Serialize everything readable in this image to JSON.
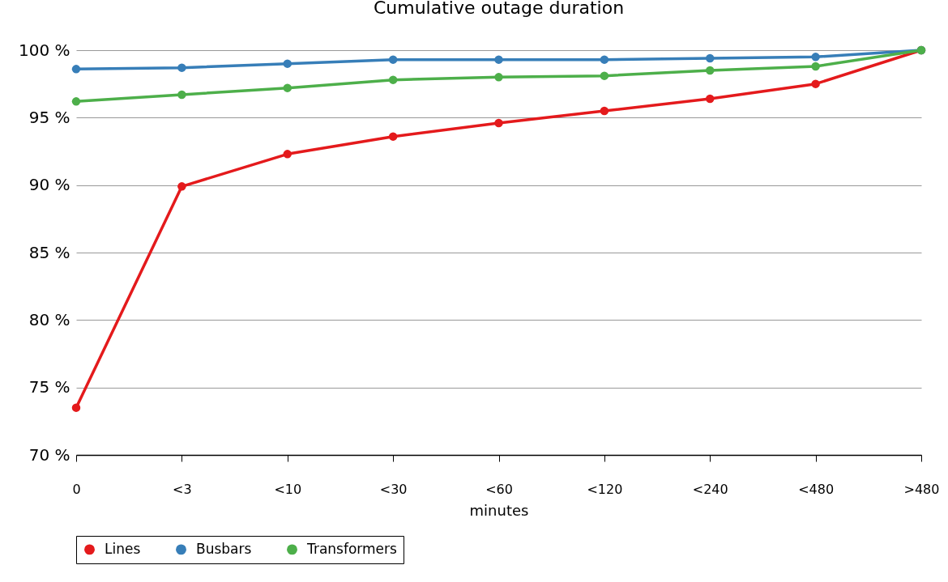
{
  "chart_data": {
    "type": "line",
    "title": "Cumulative outage duration",
    "xlabel": "minutes",
    "categories": [
      "0",
      "<3",
      "<10",
      "<30",
      "<60",
      "<120",
      "<240",
      "<480",
      ">480"
    ],
    "series": [
      {
        "name": "Lines",
        "color": "#e41a1c",
        "values": [
          73.5,
          89.9,
          92.3,
          93.6,
          94.6,
          95.5,
          96.4,
          97.5,
          100
        ]
      },
      {
        "name": "Busbars",
        "color": "#377eb8",
        "values": [
          98.6,
          98.7,
          99.0,
          99.3,
          99.3,
          99.3,
          99.4,
          99.5,
          100
        ]
      },
      {
        "name": "Transformers",
        "color": "#4daf4a",
        "values": [
          96.2,
          96.7,
          97.2,
          97.8,
          98.0,
          98.1,
          98.5,
          98.8,
          100
        ]
      }
    ],
    "ylim": [
      70,
      100
    ],
    "yticks": [
      {
        "value": 70,
        "label": "70 %"
      },
      {
        "value": 75,
        "label": "75 %"
      },
      {
        "value": 80,
        "label": "80 %"
      },
      {
        "value": 85,
        "label": "85 %"
      },
      {
        "value": 90,
        "label": "90 %"
      },
      {
        "value": 95,
        "label": "95 %"
      },
      {
        "value": 100,
        "label": "100 %"
      }
    ],
    "grid": "y",
    "legend": "bottom",
    "marker": "circle",
    "line_style": "solid"
  }
}
